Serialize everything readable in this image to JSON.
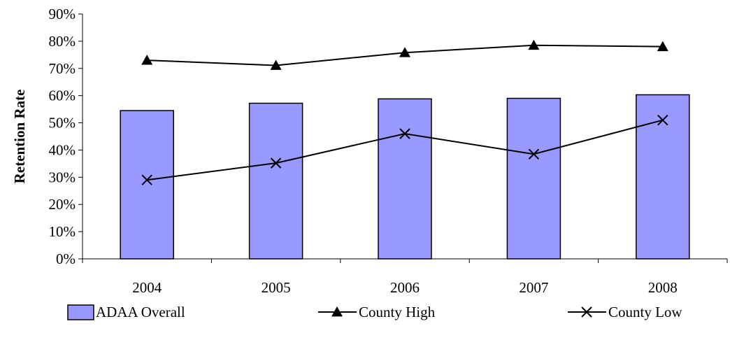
{
  "chart_data": {
    "type": "bar",
    "categories": [
      "2004",
      "2005",
      "2006",
      "2007",
      "2008"
    ],
    "ylabel": "Retention Rate",
    "ylim": [
      0,
      0.9
    ],
    "yticks": [
      "0%",
      "10%",
      "20%",
      "30%",
      "40%",
      "50%",
      "60%",
      "70%",
      "80%",
      "90%"
    ],
    "grid": false,
    "legend_position": "bottom",
    "series": [
      {
        "name": "ADAA Overall",
        "kind": "bar",
        "color": "#9999ff",
        "values": [
          0.545,
          0.572,
          0.588,
          0.59,
          0.603
        ]
      },
      {
        "name": "County High",
        "kind": "line",
        "marker": "triangle",
        "color": "#000000",
        "values": [
          0.73,
          0.711,
          0.758,
          0.785,
          0.78
        ]
      },
      {
        "name": "County Low",
        "kind": "line",
        "marker": "x",
        "color": "#000000",
        "values": [
          0.29,
          0.352,
          0.46,
          0.385,
          0.51
        ]
      }
    ]
  }
}
